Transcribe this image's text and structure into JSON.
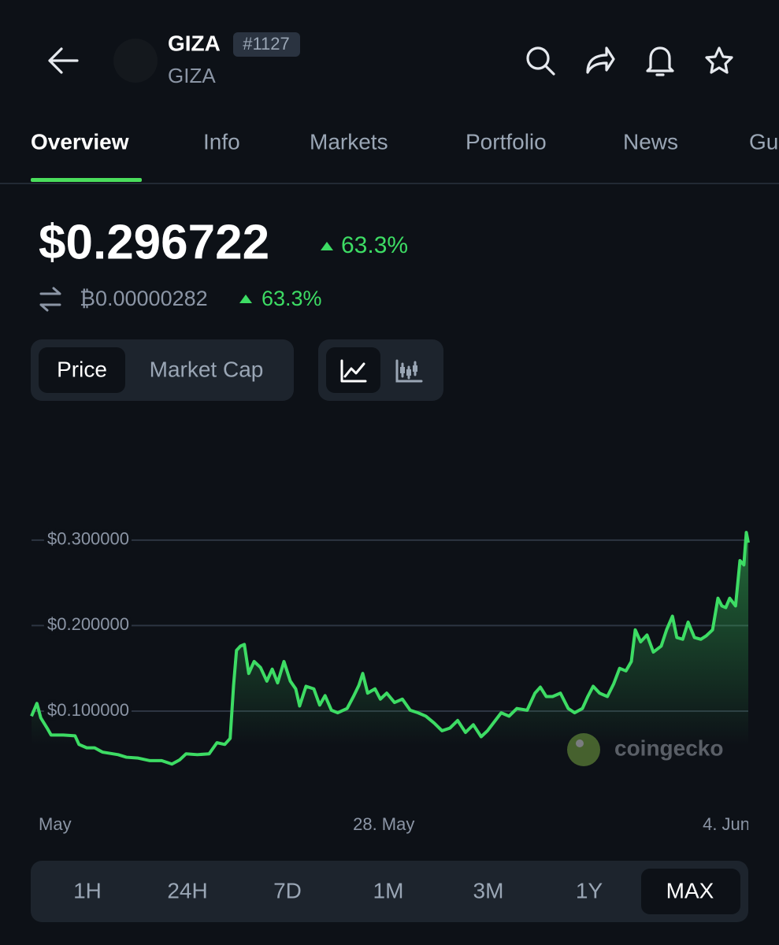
{
  "header": {
    "symbol": "GIZA",
    "rank": "#1127",
    "name": "GIZA"
  },
  "tabs": [
    "Overview",
    "Info",
    "Markets",
    "Portfolio",
    "News",
    "Guides"
  ],
  "price": {
    "usd": "$0.296722",
    "usd_change": "63.3%",
    "btc": "₿0.00000282",
    "btc_change": "63.3%"
  },
  "toggles": [
    "Price",
    "Market Cap"
  ],
  "chart_data": {
    "type": "line",
    "color": "#3ddc64",
    "grid": true,
    "watermark": "coingecko",
    "xlim": [
      0,
      14.65
    ],
    "xticks": [
      {
        "value": 0.48,
        "label": "May"
      },
      {
        "value": 7.2,
        "label": "28. May"
      },
      {
        "value": 14.2,
        "label": "4. Jun"
      }
    ],
    "ylim": [
      0,
      0.38
    ],
    "yticks": [
      {
        "value": 0.1,
        "label": "$0.100000"
      },
      {
        "value": 0.2,
        "label": "$0.200000"
      },
      {
        "value": 0.3,
        "label": "$0.300000"
      }
    ],
    "series": [
      {
        "name": "Price",
        "x": [
          0,
          0.11,
          0.19,
          0.32,
          0.4,
          0.65,
          0.89,
          0.97,
          1.13,
          1.29,
          1.45,
          1.77,
          1.94,
          2.18,
          2.42,
          2.66,
          2.87,
          3.03,
          3.16,
          3.39,
          3.63,
          3.79,
          3.95,
          4.06,
          4.13,
          4.19,
          4.27,
          4.35,
          4.44,
          4.55,
          4.68,
          4.81,
          4.92,
          5.03,
          5.16,
          5.29,
          5.4,
          5.48,
          5.61,
          5.77,
          5.89,
          6,
          6.13,
          6.26,
          6.45,
          6.58,
          6.69,
          6.77,
          6.87,
          7.02,
          7.13,
          7.26,
          7.42,
          7.58,
          7.74,
          7.9,
          8.06,
          8.23,
          8.39,
          8.55,
          8.71,
          8.87,
          9.03,
          9.19,
          9.32,
          9.48,
          9.6,
          9.76,
          9.92,
          10.13,
          10.29,
          10.4,
          10.52,
          10.65,
          10.81,
          10.97,
          11.1,
          11.26,
          11.37,
          11.48,
          11.61,
          11.77,
          11.9,
          12.02,
          12.15,
          12.26,
          12.34,
          12.45,
          12.58,
          12.71,
          12.87,
          12.98,
          13.1,
          13.19,
          13.31,
          13.42,
          13.55,
          13.68,
          13.79,
          13.92,
          14.03,
          14.11,
          14.19,
          14.27,
          14.39,
          14.48,
          14.56,
          14.61,
          14.65
        ],
        "values": [
          0.094,
          0.109,
          0.092,
          0.08,
          0.072,
          0.072,
          0.071,
          0.061,
          0.057,
          0.057,
          0.052,
          0.049,
          0.046,
          0.045,
          0.042,
          0.042,
          0.038,
          0.043,
          0.05,
          0.049,
          0.05,
          0.063,
          0.061,
          0.068,
          0.13,
          0.171,
          0.176,
          0.178,
          0.144,
          0.158,
          0.151,
          0.135,
          0.149,
          0.133,
          0.158,
          0.135,
          0.126,
          0.106,
          0.129,
          0.126,
          0.107,
          0.118,
          0.101,
          0.098,
          0.103,
          0.117,
          0.13,
          0.144,
          0.121,
          0.126,
          0.114,
          0.121,
          0.11,
          0.114,
          0.101,
          0.098,
          0.094,
          0.086,
          0.077,
          0.08,
          0.089,
          0.075,
          0.084,
          0.07,
          0.077,
          0.089,
          0.098,
          0.094,
          0.103,
          0.101,
          0.121,
          0.128,
          0.117,
          0.117,
          0.121,
          0.103,
          0.098,
          0.103,
          0.117,
          0.129,
          0.121,
          0.117,
          0.132,
          0.15,
          0.147,
          0.158,
          0.195,
          0.181,
          0.189,
          0.169,
          0.176,
          0.195,
          0.211,
          0.186,
          0.184,
          0.204,
          0.186,
          0.184,
          0.188,
          0.195,
          0.232,
          0.223,
          0.221,
          0.232,
          0.223,
          0.276,
          0.271,
          0.309,
          0.297
        ]
      }
    ]
  },
  "ranges": [
    "1H",
    "24H",
    "7D",
    "1M",
    "3M",
    "1Y",
    "MAX"
  ]
}
